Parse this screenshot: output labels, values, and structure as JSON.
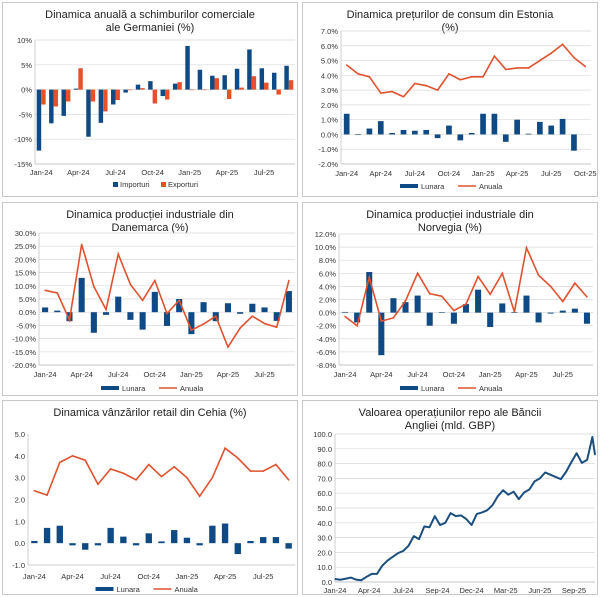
{
  "colors": {
    "bar": "#0f4a85",
    "bar2": "#e8502a",
    "line": "#e0522d",
    "repo_line": "#1b4f80",
    "grid": "#d9d9d9"
  },
  "chart_data": [
    {
      "type": "bar",
      "title": "Dinamica anuală a schimburilor comerciale ale Germaniei (%)",
      "categories": [
        "Jan-24",
        "Feb-24",
        "Mar-24",
        "Apr-24",
        "May-24",
        "Jun-24",
        "Jul-24",
        "Aug-24",
        "Sep-24",
        "Oct-24",
        "Nov-24",
        "Dec-24",
        "Jan-25",
        "Feb-25",
        "Mar-25",
        "Apr-25",
        "May-25",
        "Jun-25",
        "Jul-25",
        "Aug-25",
        "Sep-25"
      ],
      "xtick_labels": [
        "Jan-24",
        "Apr-24",
        "Jul-24",
        "Oct-24",
        "Jan-25",
        "Apr-25",
        "Jul-25"
      ],
      "ylim": [
        -15,
        10
      ],
      "yticks": [
        -15,
        -10,
        -5,
        0,
        5,
        10
      ],
      "ytick_labels": [
        "-15%",
        "-10%",
        "-5%",
        "0%",
        "5%",
        "10%"
      ],
      "grid": true,
      "legend": "bottom",
      "series": [
        {
          "name": "Importuri",
          "type": "bar",
          "values": [
            -12.3,
            -6.8,
            -5.3,
            0.2,
            -9.5,
            -6.7,
            -3.0,
            -0.6,
            1.0,
            1.7,
            -1.3,
            1.2,
            8.8,
            4.0,
            2.8,
            2.9,
            4.2,
            8.1,
            4.3,
            3.4,
            4.8
          ]
        },
        {
          "name": "Exporturi",
          "type": "bar",
          "values": [
            -3.0,
            -3.4,
            -2.4,
            4.3,
            -2.4,
            -4.4,
            -2.1,
            0,
            0.3,
            -2.8,
            -2.0,
            1.5,
            0,
            0,
            2.3,
            -1.9,
            0.4,
            2.7,
            1.4,
            -1.0,
            1.9
          ]
        }
      ]
    },
    {
      "type": "bar+line",
      "title": "Dinamica prețurilor de consum din Estonia (%)",
      "categories": [
        "Jan-24",
        "Feb-24",
        "Mar-24",
        "Apr-24",
        "May-24",
        "Jun-24",
        "Jul-24",
        "Aug-24",
        "Sep-24",
        "Oct-24",
        "Nov-24",
        "Dec-24",
        "Jan-25",
        "Feb-25",
        "Mar-25",
        "Apr-25",
        "May-25",
        "Jun-25",
        "Jul-25",
        "Aug-25",
        "Sep-25",
        "Oct-25"
      ],
      "xtick_labels": [
        "Jan-24",
        "Apr-24",
        "Jul-24",
        "Oct-24",
        "Jan-25",
        "Apr-25",
        "Jul-25",
        "Oct-25"
      ],
      "ylim": [
        -2,
        7
      ],
      "yticks": [
        -2,
        -1,
        0,
        1,
        2,
        3,
        4,
        5,
        6,
        7
      ],
      "ytick_labels": [
        "-2.0%",
        "-1.0%",
        "0.0%",
        "1.0%",
        "2.0%",
        "3.0%",
        "4.0%",
        "5.0%",
        "6.0%",
        "7.0%"
      ],
      "grid": true,
      "legend": "bottom",
      "series": [
        {
          "name": "Lunara",
          "type": "bar",
          "values": [
            1.4,
            0,
            0.4,
            0.9,
            0.1,
            0.3,
            0.25,
            0.3,
            -0.25,
            0.6,
            -0.4,
            0.1,
            1.4,
            1.4,
            -0.5,
            1.0,
            0.05,
            0.85,
            0.6,
            1.05,
            -1.1,
            null
          ]
        },
        {
          "name": "Anuala",
          "type": "line",
          "values": [
            4.7,
            4.1,
            3.9,
            2.8,
            2.9,
            2.55,
            3.45,
            3.3,
            3.0,
            4.1,
            3.7,
            3.9,
            3.9,
            5.3,
            4.4,
            4.5,
            4.5,
            5.0,
            5.5,
            6.1,
            5.2,
            4.6
          ]
        }
      ]
    },
    {
      "type": "bar+line",
      "title": "Dinamica producției industriale din Danemarca (%)",
      "categories": [
        "Jan-24",
        "Feb-24",
        "Mar-24",
        "Apr-24",
        "May-24",
        "Jun-24",
        "Jul-24",
        "Aug-24",
        "Sep-24",
        "Oct-24",
        "Nov-24",
        "Dec-24",
        "Jan-25",
        "Feb-25",
        "Mar-25",
        "Apr-25",
        "May-25",
        "Jun-25",
        "Jul-25",
        "Aug-25",
        "Sep-25"
      ],
      "xtick_labels": [
        "Jan-24",
        "Apr-24",
        "Jul-24",
        "Oct-24",
        "Jan-25",
        "Apr-25",
        "Jul-25"
      ],
      "ylim": [
        -20,
        30
      ],
      "yticks": [
        -20,
        -15,
        -10,
        -5,
        0,
        5,
        10,
        15,
        20,
        25,
        30
      ],
      "ytick_labels": [
        "-20.0%",
        "-15.0%",
        "-10.0%",
        "-5.0%",
        "0.0%",
        "5.0%",
        "10.0%",
        "15.0%",
        "20.0%",
        "25.0%",
        "30.0%"
      ],
      "grid": true,
      "legend": "bottom",
      "series": [
        {
          "name": "Lunara",
          "type": "bar",
          "values": [
            1.8,
            0.6,
            -3.4,
            13.0,
            -7.8,
            -1.0,
            5.9,
            -2.9,
            -6.6,
            7.7,
            -5.2,
            5.0,
            -8.3,
            3.8,
            -3.4,
            3.4,
            -0.6,
            3.2,
            1.8,
            -3.3,
            8.0
          ]
        },
        {
          "name": "Anuala",
          "type": "line",
          "values": [
            8.3,
            7.3,
            -3.0,
            25.7,
            9.7,
            1.0,
            22.0,
            10.5,
            4.5,
            12.0,
            -0.5,
            4.5,
            -6.8,
            -4.5,
            -1.5,
            -13.2,
            -6.0,
            -1.5,
            -4.3,
            -5.7,
            12.0
          ]
        }
      ]
    },
    {
      "type": "bar+line",
      "title": "Dinamica producției industriale din Norvegia (%)",
      "categories": [
        "Jan-24",
        "Feb-24",
        "Mar-24",
        "Apr-24",
        "May-24",
        "Jun-24",
        "Jul-24",
        "Aug-24",
        "Sep-24",
        "Oct-24",
        "Nov-24",
        "Dec-24",
        "Jan-25",
        "Feb-25",
        "Mar-25",
        "Apr-25",
        "May-25",
        "Jun-25",
        "Jul-25",
        "Aug-25",
        "Sep-25"
      ],
      "xtick_labels": [
        "Jan-24",
        "Apr-24",
        "Jul-24",
        "Oct-24",
        "Jan-25",
        "Apr-25",
        "Jul-25"
      ],
      "ylim": [
        -8,
        12
      ],
      "yticks": [
        -8,
        -6,
        -4,
        -2,
        0,
        2,
        4,
        6,
        8,
        10,
        12
      ],
      "ytick_labels": [
        "-8.0%",
        "-6.0%",
        "-4.0%",
        "-2.0%",
        "0.0%",
        "2.0%",
        "4.0%",
        "6.0%",
        "8.0%",
        "10.0%",
        "12.0%"
      ],
      "grid": true,
      "legend": "bottom",
      "series": [
        {
          "name": "Lunara",
          "type": "bar",
          "values": [
            0.1,
            -1.5,
            6.2,
            -6.5,
            2.2,
            1.6,
            2.6,
            -2.0,
            0.05,
            -1.7,
            1.3,
            3.5,
            -2.2,
            1.4,
            0.05,
            2.6,
            -1.5,
            -0.15,
            0.3,
            0.6,
            -1.7
          ]
        },
        {
          "name": "Anuala",
          "type": "line",
          "values": [
            -0.6,
            -2.0,
            5.4,
            -1.3,
            -0.8,
            1.8,
            6.0,
            2.9,
            2.5,
            0.3,
            1.3,
            5.5,
            2.8,
            6.0,
            0.1,
            9.9,
            5.7,
            4.0,
            1.7,
            4.5,
            2.4
          ]
        }
      ]
    },
    {
      "type": "bar+line",
      "title": "Dinamica vânzărilor retail din Cehia (%)",
      "categories": [
        "Jan-24",
        "Feb-24",
        "Mar-24",
        "Apr-24",
        "May-24",
        "Jun-24",
        "Jul-24",
        "Aug-24",
        "Sep-24",
        "Oct-24",
        "Nov-24",
        "Dec-24",
        "Jan-25",
        "Feb-25",
        "Mar-25",
        "Apr-25",
        "May-25",
        "Jun-25",
        "Jul-25",
        "Aug-25",
        "Sep-25"
      ],
      "xtick_labels": [
        "Jan-24",
        "Apr-24",
        "Jul-24",
        "Oct-24",
        "Jan-25",
        "Apr-25",
        "Jul-25"
      ],
      "ylim": [
        -1,
        5
      ],
      "yticks": [
        -1,
        0,
        1,
        2,
        3,
        4,
        5
      ],
      "ytick_labels": [
        "-1.0",
        "0.0",
        "1.0",
        "2.0",
        "3.0",
        "4.0",
        "5.0"
      ],
      "grid": false,
      "legend": "bottom",
      "series": [
        {
          "name": "Lunara",
          "type": "bar",
          "values": [
            0.1,
            0.7,
            0.8,
            -0.1,
            -0.3,
            -0.1,
            0.7,
            0.3,
            -0.1,
            0.45,
            0.08,
            0.6,
            0.25,
            -0.1,
            0.8,
            0.9,
            -0.5,
            0.1,
            0.28,
            0.28,
            -0.25
          ]
        },
        {
          "name": "Anuala",
          "type": "line",
          "values": [
            2.4,
            2.2,
            3.7,
            4.0,
            3.8,
            2.7,
            3.4,
            3.2,
            2.9,
            3.6,
            3.05,
            3.5,
            3.0,
            2.15,
            3.0,
            4.35,
            3.9,
            3.3,
            3.3,
            3.6,
            2.9
          ]
        }
      ]
    },
    {
      "type": "line",
      "title": "Valoarea operațiunilor repo ale Băncii Angliei (mld. GBP)",
      "xtick_labels": [
        "Jan-24",
        "Apr-24",
        "Jul-24",
        "Sep-24",
        "Dec-24",
        "Mar-25",
        "Jun-25",
        "Sep-25"
      ],
      "ylim": [
        0,
        100
      ],
      "yticks": [
        0,
        10,
        20,
        30,
        40,
        50,
        60,
        70,
        80,
        90,
        100
      ],
      "ytick_labels": [
        "0.0",
        "10.0",
        "20.0",
        "30.0",
        "40.0",
        "50.0",
        "60.0",
        "70.0",
        "80.0",
        "90.0",
        "100.0"
      ],
      "grid": true,
      "legend": "none",
      "x": [
        "2024-01-05",
        "2024-01-19",
        "2024-02-02",
        "2024-02-16",
        "2024-03-01",
        "2024-03-15",
        "2024-03-29",
        "2024-04-12",
        "2024-04-26",
        "2024-05-10",
        "2024-05-24",
        "2024-06-07",
        "2024-06-21",
        "2024-07-05",
        "2024-07-19",
        "2024-08-02",
        "2024-08-16",
        "2024-08-30",
        "2024-09-13",
        "2024-09-27",
        "2024-10-11",
        "2024-10-25",
        "2024-11-08",
        "2024-11-22",
        "2024-12-06",
        "2024-12-20",
        "2025-01-03",
        "2025-01-17",
        "2025-01-31",
        "2025-02-14",
        "2025-02-28",
        "2025-03-14",
        "2025-03-28",
        "2025-04-11",
        "2025-04-25",
        "2025-05-09",
        "2025-05-23",
        "2025-06-06",
        "2025-06-20",
        "2025-07-04",
        "2025-07-18",
        "2025-08-01",
        "2025-08-15",
        "2025-08-29",
        "2025-09-12",
        "2025-09-26",
        "2025-10-10",
        "2025-10-24",
        "2025-11-07",
        "2025-11-21",
        "2025-11-28"
      ],
      "series": [
        {
          "type": "line",
          "values": [
            2,
            1.5,
            2.2,
            3,
            1.6,
            1.2,
            3.5,
            5.5,
            5.5,
            11,
            14.5,
            17,
            19.5,
            21,
            24.5,
            31,
            29,
            37.5,
            37,
            44.5,
            38.5,
            40,
            46.5,
            44.5,
            45,
            42.5,
            38.5,
            46,
            47,
            48.5,
            52,
            58,
            62,
            59,
            61,
            56,
            60.5,
            62.5,
            68,
            70,
            74,
            72.5,
            71,
            69.5,
            74.5,
            81,
            87,
            80.5,
            82.5,
            98,
            86
          ]
        }
      ]
    }
  ]
}
